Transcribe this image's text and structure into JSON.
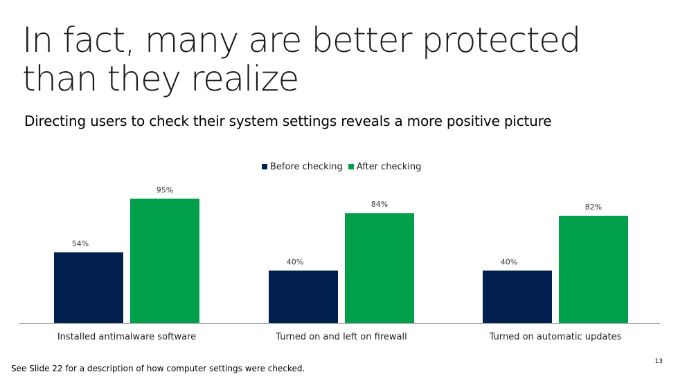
{
  "slide": {
    "title": "In fact, many are better protected than they realize",
    "subtitle": "Directing users to check their system settings reveals a more positive picture",
    "footnote": "See Slide 22 for a description of how computer settings were checked.",
    "page_number": "13"
  },
  "colors": {
    "before": "#012050",
    "after": "#00a04a",
    "axis": "#808080",
    "label": "#333333"
  },
  "chart_data": {
    "type": "bar",
    "title": "",
    "xlabel": "",
    "ylabel": "",
    "categories": [
      "Installed antimalware software",
      "Turned on and left on firewall",
      "Turned on automatic updates"
    ],
    "series": [
      {
        "name": "Before checking",
        "values": [
          54,
          40,
          40
        ],
        "labels": [
          "54%",
          "40%",
          "40%"
        ]
      },
      {
        "name": "After checking",
        "values": [
          95,
          84,
          82
        ],
        "labels": [
          "95%",
          "84%",
          "82%"
        ]
      }
    ],
    "ylim": [
      0,
      100
    ],
    "grid": false,
    "legend": "top-center"
  }
}
